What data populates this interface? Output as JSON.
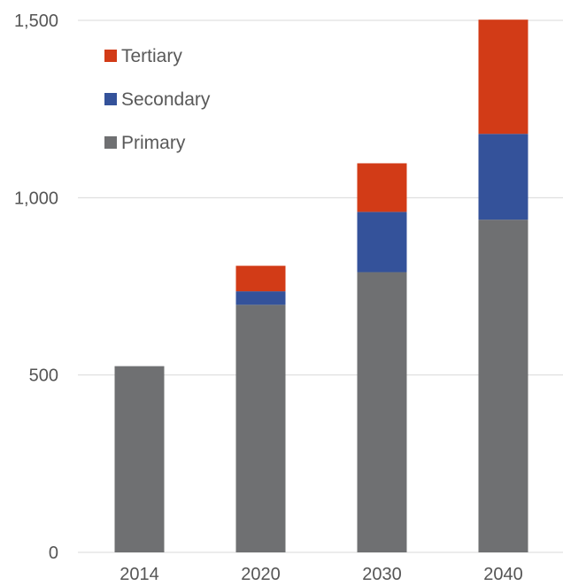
{
  "chart_data": {
    "type": "bar",
    "stacked": true,
    "categories": [
      "2014",
      "2020",
      "2030",
      "2040"
    ],
    "series": [
      {
        "name": "Primary",
        "values": [
          525,
          698,
          790,
          938
        ],
        "color": "#6f7072"
      },
      {
        "name": "Secondary",
        "values": [
          0,
          38,
          170,
          242
        ],
        "color": "#34529a"
      },
      {
        "name": "Tertiary",
        "values": [
          0,
          72,
          137,
          322
        ],
        "color": "#d23b17"
      }
    ],
    "ylim": [
      0,
      1500
    ],
    "yticks": [
      0,
      500,
      1000,
      1500
    ],
    "ytick_labels": [
      "0",
      "500",
      "1,000",
      "1,500"
    ],
    "grid": true,
    "legend_position": "top-left",
    "legend_order": [
      "Tertiary",
      "Secondary",
      "Primary"
    ]
  }
}
